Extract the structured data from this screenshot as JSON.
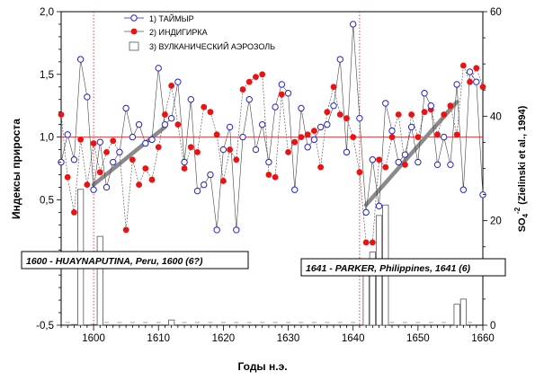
{
  "chart_data": {
    "type": "line",
    "xlabel": "Годы н.э.",
    "ylabel_left": "Индексы прироста",
    "ylabel_right_main": "SO",
    "ylabel_right_sub": "4",
    "ylabel_right_sup": "-2",
    "ylabel_right_rest": " (Zielinski et al., 1994)",
    "xlim": [
      1595,
      1660
    ],
    "ylim_left": [
      -0.5,
      2.0
    ],
    "ylim_right": [
      0,
      60
    ],
    "x_ticks": [
      "1600",
      "1610",
      "1620",
      "1630",
      "1640",
      "1650",
      "1660"
    ],
    "y_left_ticks": [
      "-0,5",
      "0,5",
      "1,0",
      "1,5",
      "2,0"
    ],
    "y_right_ticks": [
      "0",
      "20",
      "40",
      "60"
    ],
    "legend": {
      "position": "top-center",
      "entries": [
        "1) ТАЙМЫР",
        "2) ИНДИГИРКА",
        "3) ВУЛКАНИЧЕСКИЙ АЭРОЗОЛЬ"
      ]
    },
    "series": [
      {
        "name": "1) ТАЙМЫР",
        "color": "#2222cc",
        "marker": "open-circle",
        "x": [
          1595,
          1596,
          1597,
          1598,
          1599,
          1600,
          1601,
          1602,
          1603,
          1604,
          1605,
          1606,
          1607,
          1608,
          1609,
          1610,
          1611,
          1612,
          1613,
          1614,
          1615,
          1616,
          1617,
          1618,
          1619,
          1620,
          1621,
          1622,
          1623,
          1624,
          1625,
          1626,
          1627,
          1628,
          1629,
          1630,
          1631,
          1632,
          1633,
          1634,
          1635,
          1636,
          1637,
          1638,
          1639,
          1640,
          1641,
          1642,
          1643,
          1644,
          1645,
          1646,
          1647,
          1648,
          1649,
          1650,
          1651,
          1652,
          1653,
          1654,
          1655,
          1656,
          1657,
          1658,
          1659,
          1660
        ],
        "values": [
          0.8,
          1.02,
          0.82,
          1.62,
          1.32,
          0.58,
          0.96,
          0.6,
          0.8,
          0.88,
          1.23,
          1.0,
          1.1,
          0.95,
          0.98,
          1.55,
          1.1,
          1.15,
          1.44,
          0.8,
          1.3,
          0.57,
          0.62,
          0.7,
          0.26,
          0.9,
          1.08,
          0.26,
          1.0,
          1.3,
          0.9,
          1.1,
          0.8,
          1.24,
          1.42,
          1.35,
          0.58,
          1.23,
          0.92,
          0.98,
          1.08,
          1.1,
          1.25,
          1.62,
          0.88,
          1.9,
          1.15,
          0.4,
          0.82,
          0.45,
          1.27,
          1.05,
          0.8,
          0.86,
          1.08,
          0.8,
          1.35,
          1.25,
          0.78,
          1.0,
          0.78,
          1.42,
          0.58,
          1.52,
          1.44,
          0.54
        ]
      },
      {
        "name": "2) ИНДИГИРКА",
        "color": "#ee1111",
        "marker": "filled-circle",
        "x": [
          1595,
          1596,
          1597,
          1598,
          1599,
          1600,
          1601,
          1602,
          1603,
          1604,
          1605,
          1606,
          1607,
          1608,
          1609,
          1610,
          1611,
          1612,
          1613,
          1614,
          1615,
          1616,
          1617,
          1618,
          1619,
          1620,
          1621,
          1622,
          1623,
          1624,
          1625,
          1626,
          1627,
          1628,
          1629,
          1630,
          1631,
          1632,
          1633,
          1634,
          1635,
          1636,
          1637,
          1638,
          1639,
          1640,
          1641,
          1642,
          1643,
          1644,
          1645,
          1646,
          1647,
          1648,
          1649,
          1650,
          1651,
          1652,
          1653,
          1654,
          1655,
          1656,
          1657,
          1658,
          1659,
          1660
        ],
        "values": [
          1.18,
          0.68,
          0.4,
          0.98,
          0.62,
          0.95,
          0.72,
          0.88,
          0.97,
          0.88,
          0.26,
          0.82,
          0.62,
          0.75,
          0.66,
          0.92,
          1.18,
          1.41,
          1.1,
          0.75,
          0.92,
          0.88,
          1.24,
          1.2,
          1.02,
          0.65,
          0.9,
          0.82,
          1.38,
          1.44,
          1.48,
          1.5,
          0.7,
          0.68,
          1.34,
          0.88,
          0.96,
          1.0,
          1.02,
          1.05,
          0.76,
          1.2,
          1.4,
          1.18,
          1.15,
          1.0,
          0.72,
          0.16,
          0.16,
          0.82,
          0.76,
          1.0,
          1.18,
          0.78,
          1.18,
          1.0,
          1.2,
          1.22,
          1.02,
          1.18,
          1.25,
          1.02,
          1.57,
          1.44,
          1.55,
          1.4
        ]
      },
      {
        "name": "3) ВУЛКАНИЧЕСКИЙ АЭРОЗОЛЬ",
        "color": "#555555",
        "type": "bar",
        "x": [
          1597,
          1598,
          1600,
          1601,
          1612,
          1642,
          1643,
          1644,
          1645,
          1656,
          1657
        ],
        "values": [
          0,
          26,
          0,
          17,
          1,
          12,
          14,
          21,
          23,
          4,
          5
        ]
      }
    ],
    "annotations": [
      {
        "text": "1600 - HUAYNAPUTINA, Peru, 1600 (6?)"
      },
      {
        "text": "1641 - PARKER, Philippines, 1641 (6)"
      }
    ],
    "trend_lines": [
      {
        "x": [
          1600,
          1611
        ],
        "y": [
          0.62,
          1.08
        ]
      },
      {
        "x": [
          1642,
          1656
        ],
        "y": [
          0.46,
          1.28
        ]
      }
    ],
    "reference_line": {
      "y": 1.0,
      "color": "#ee1111"
    },
    "event_lines": {
      "x": [
        1600,
        1641
      ],
      "color": "#ee1111"
    },
    "grid": false
  }
}
